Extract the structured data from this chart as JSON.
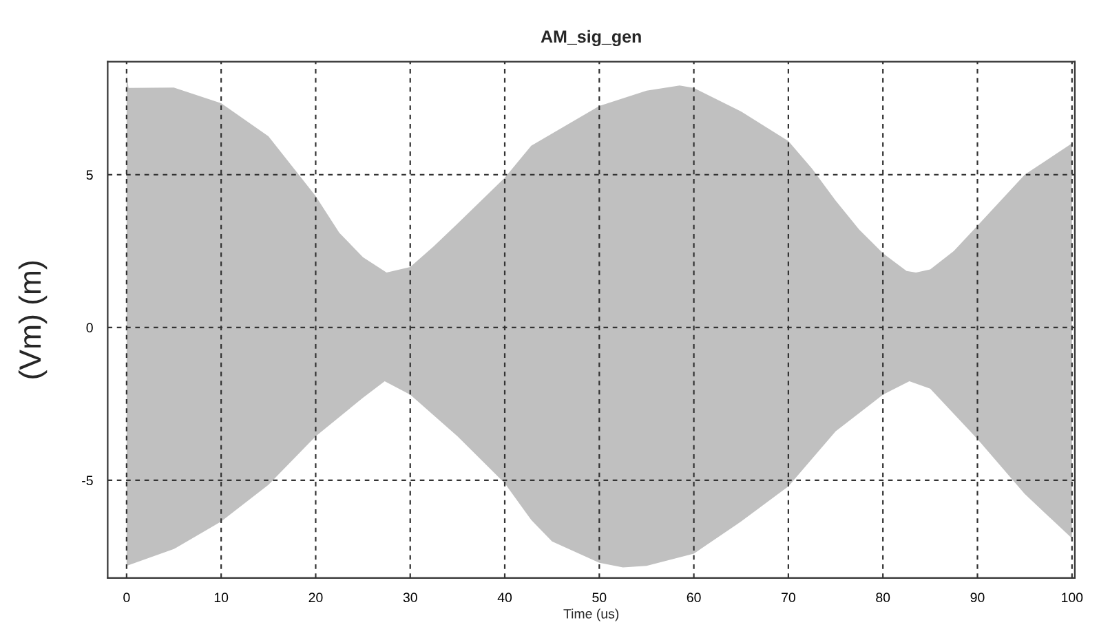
{
  "chart_data": {
    "type": "area",
    "title": "AM_sig_gen",
    "xlabel": "Time (us)",
    "ylabel": "(Vm) (m)",
    "xlim": [
      -2,
      100.3
    ],
    "ylim": [
      -8.2,
      8.7
    ],
    "xticks": [
      0,
      10,
      20,
      30,
      40,
      50,
      60,
      70,
      80,
      90,
      100
    ],
    "yticks": [
      -5,
      0,
      5
    ],
    "grid": true,
    "legend": false,
    "series": [
      {
        "color": "#c0c0c0",
        "x": [
          0,
          0.2,
          5,
          10,
          15,
          20,
          22.5,
          25,
          27.5,
          30,
          32.5,
          35,
          40,
          42.8,
          50,
          55,
          58.5,
          60,
          65,
          70,
          72.5,
          75,
          77.5,
          80,
          82.5,
          83.5,
          85,
          87.5,
          90,
          95,
          100
        ],
        "values": [
          8.3,
          7.84,
          7.85,
          7.34,
          6.26,
          4.3,
          3.1,
          2.3,
          1.8,
          1.98,
          2.66,
          3.4,
          4.9,
          5.95,
          7.25,
          7.75,
          7.92,
          7.84,
          7.07,
          6.1,
          5.2,
          4.15,
          3.2,
          2.43,
          1.85,
          1.8,
          1.9,
          2.5,
          3.33,
          5.0,
          6.03
        ]
      },
      {
        "color": "#c0c0c0",
        "x": [
          0,
          5,
          10,
          15,
          20,
          25,
          27.3,
          30,
          35,
          40,
          42.8,
          45,
          50,
          52.5,
          55,
          60,
          65,
          70,
          75,
          80,
          82.8,
          85,
          90,
          95,
          100
        ],
        "values": [
          -7.8,
          -7.25,
          -6.35,
          -5.15,
          -3.56,
          -2.3,
          -1.76,
          -2.2,
          -3.56,
          -5.1,
          -6.3,
          -7.0,
          -7.7,
          -7.85,
          -7.8,
          -7.4,
          -6.35,
          -5.2,
          -3.4,
          -2.2,
          -1.76,
          -2.0,
          -3.65,
          -5.45,
          -6.9
        ]
      }
    ]
  }
}
